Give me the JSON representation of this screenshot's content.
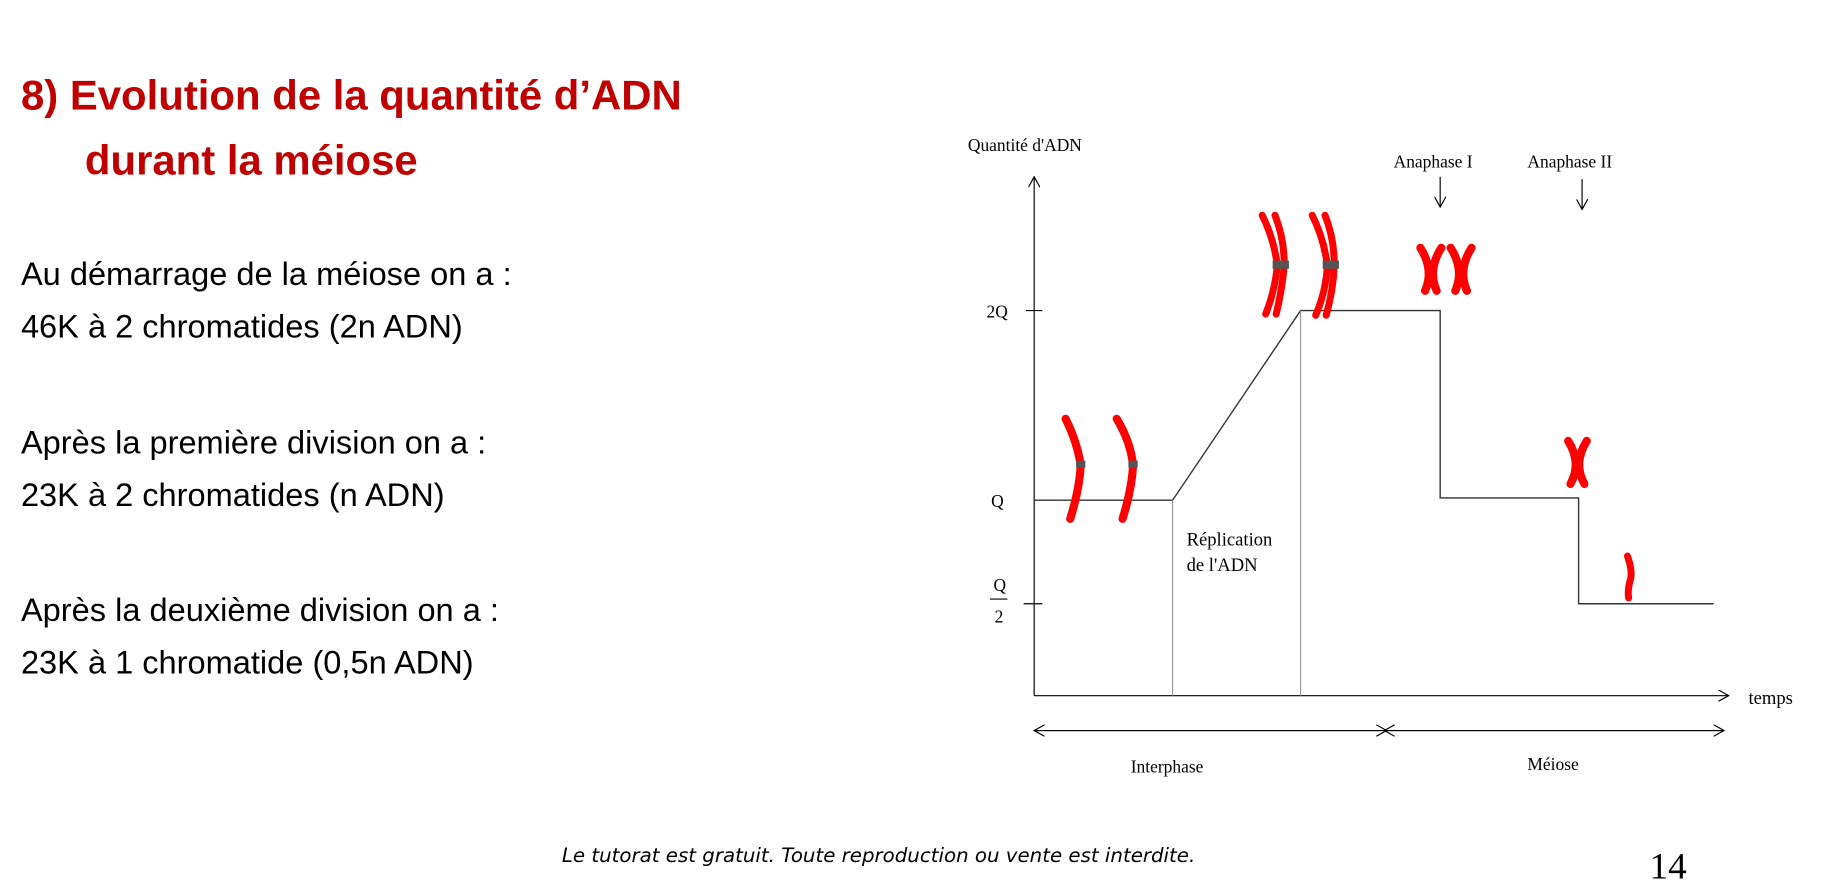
{
  "title": {
    "number": "8)",
    "line1": "Evolution de la quantité d’ADN",
    "line2": "durant la méiose"
  },
  "paragraphs": [
    {
      "line1": "Au démarrage de la méiose on a :",
      "line2": "46K à 2 chromatides (2n ADN)"
    },
    {
      "line1": "Après la première division on a :",
      "line2": "23K à 2 chromatides (n ADN)"
    },
    {
      "line1": "Après la deuxième division on a :",
      "line2": "23K à 1 chromatide (0,5n ADN)"
    }
  ],
  "diagram": {
    "y_axis_label": "Quantité d'ADN",
    "x_axis_label": "temps",
    "y_ticks": {
      "two_q": "2Q",
      "q": "Q",
      "half_num": "Q",
      "half_den": "2"
    },
    "replication_line1": "Réplication",
    "replication_line2": "de l'ADN",
    "anaphase1": "Anaphase I",
    "anaphase2": "Anaphase II",
    "phase_interphase": "Interphase",
    "phase_meiose": "Méiose",
    "chromosome_color": "#ff0000",
    "title_color": "#c00000"
  },
  "footer": {
    "notice": "Le tutorat est gratuit. Toute reproduction ou vente est interdite.",
    "page_number": "14"
  }
}
